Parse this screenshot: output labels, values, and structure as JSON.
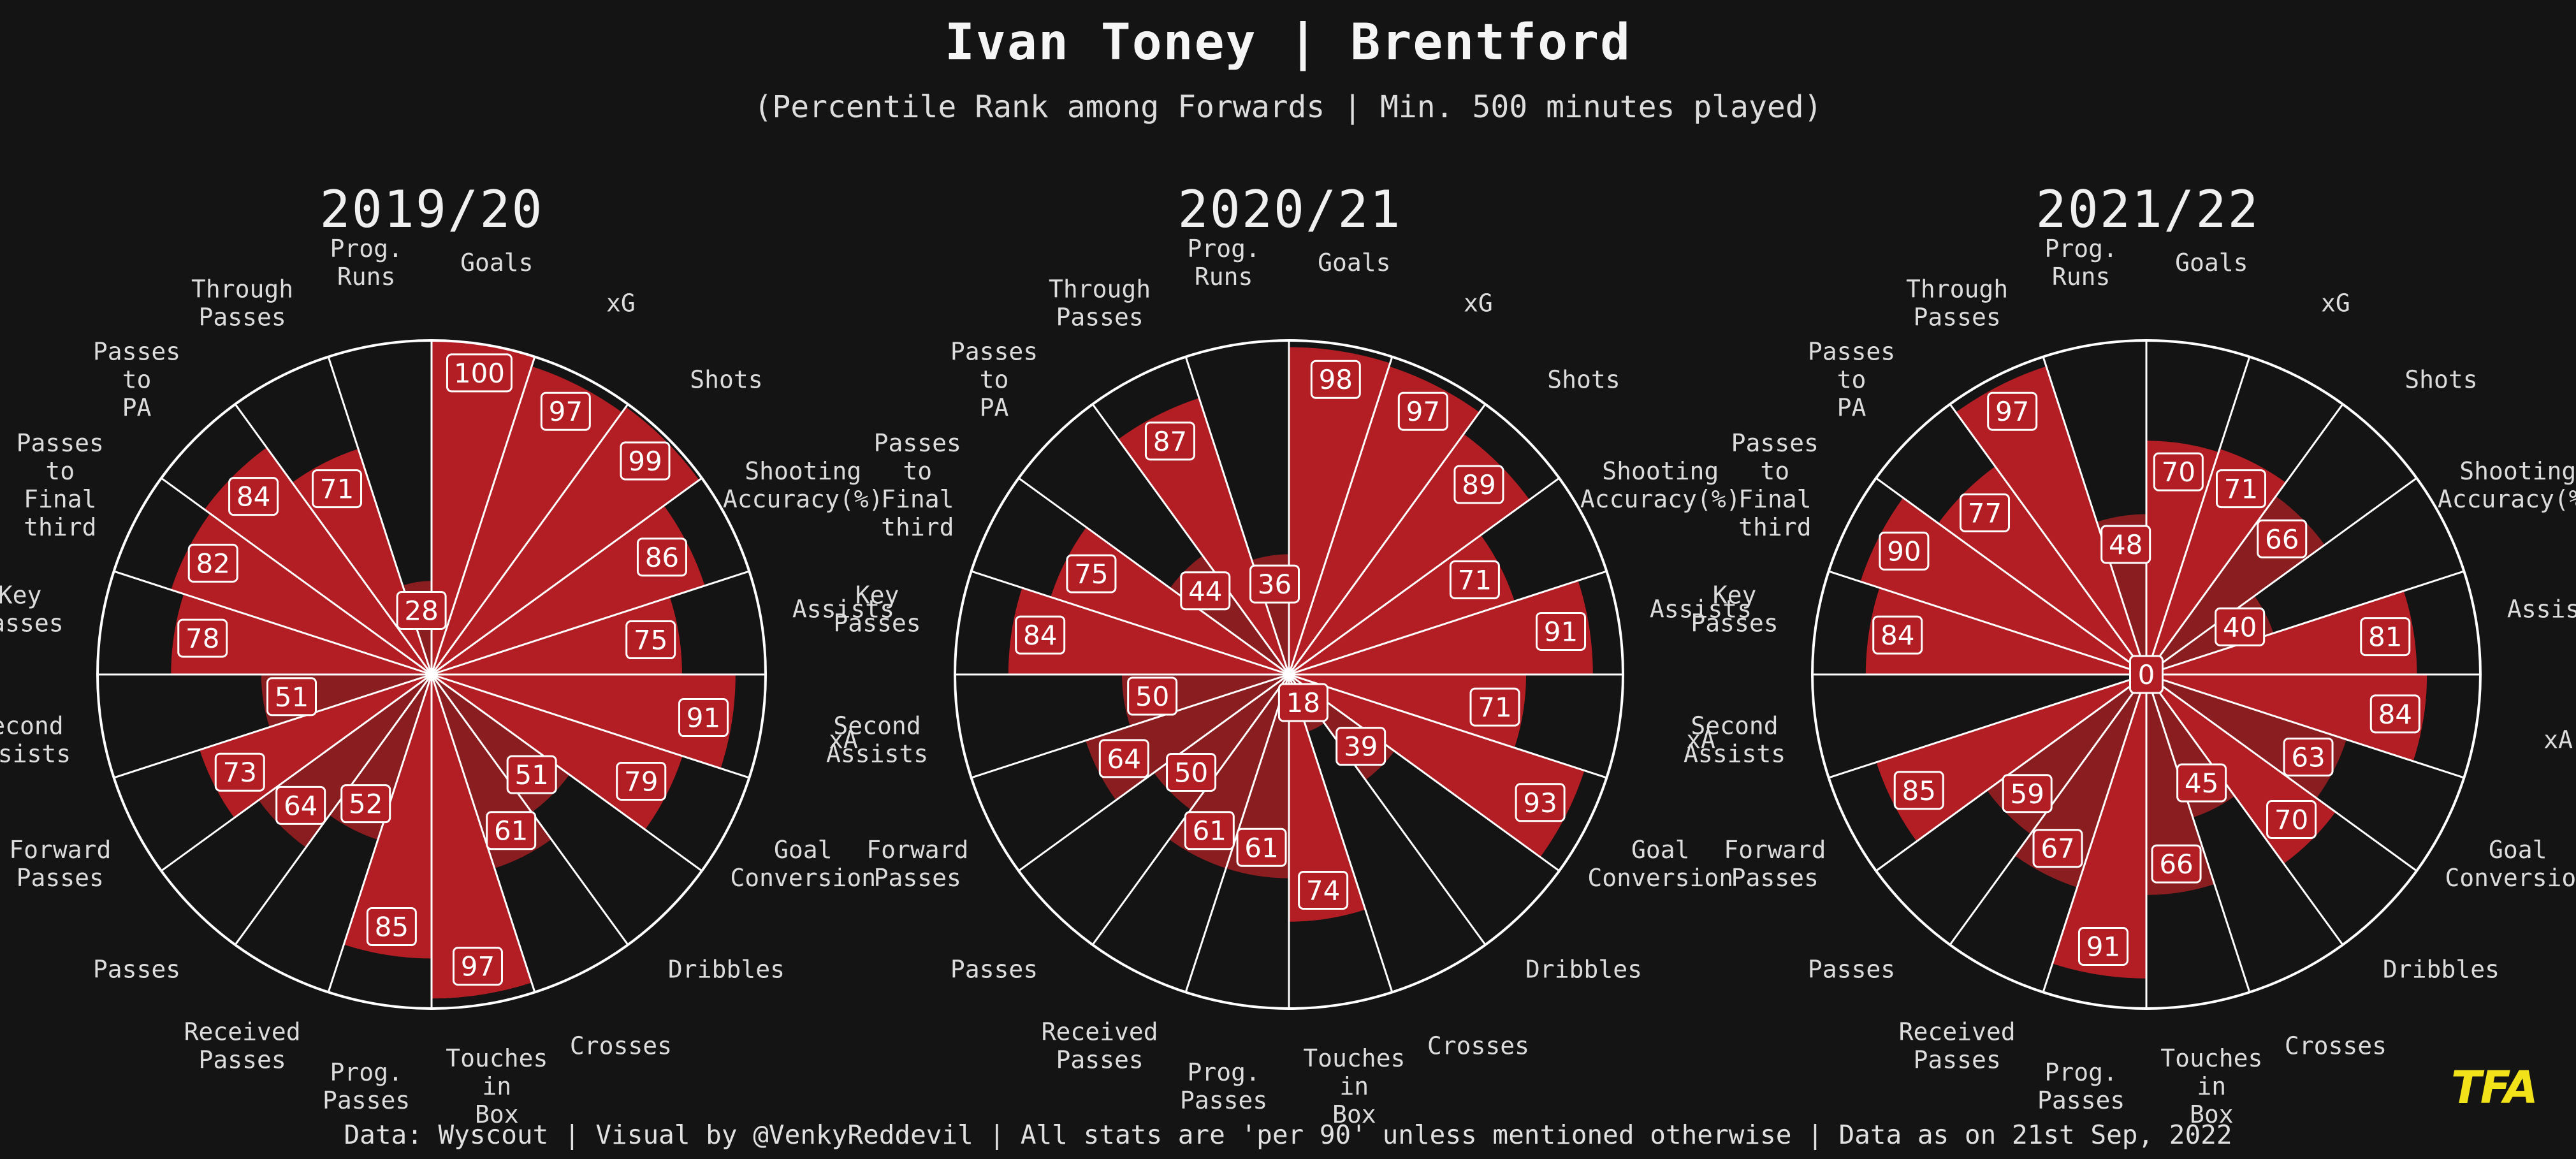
{
  "header": {
    "title": "Ivan Toney | Brentford",
    "subtitle": "(Percentile Rank among Forwards | Min. 500 minutes played)"
  },
  "footer": {
    "text": "Data: Wyscout | Visual by @VenkyReddevil | All stats are 'per 90' unless mentioned otherwise | Data as on 21st Sep, 2022",
    "logo": "TFA"
  },
  "colors": {
    "background": "#141414",
    "slice": "#b21e23",
    "slice_alt": "#8a1d20",
    "edge": "#ffffff",
    "logo": "#f2e21a"
  },
  "chart_data": [
    {
      "type": "pie",
      "subtype": "radial-percentile",
      "title": "2019/20",
      "rlim": [
        0,
        100
      ],
      "categories": [
        "Goals",
        "xG",
        "Shots",
        "Shooting\nAccuracy(%)",
        "Assists",
        "xA",
        "Goal\nConversion",
        "Dribbles",
        "Crosses",
        "Touches\nin\nBox",
        "Prog.\nPasses",
        "Received\nPasses",
        "Passes",
        "Forward\nPasses",
        "Second\nAssists",
        "Key\nPasses",
        "Passes\nto\nFinal\nthird",
        "Passes\nto\nPA",
        "Through\nPasses",
        "Prog.\nRuns"
      ],
      "values": [
        100,
        97,
        99,
        86,
        75,
        91,
        79,
        51,
        61,
        97,
        85,
        52,
        64,
        73,
        51,
        78,
        82,
        84,
        71,
        28
      ]
    },
    {
      "type": "pie",
      "subtype": "radial-percentile",
      "title": "2020/21",
      "rlim": [
        0,
        100
      ],
      "categories": [
        "Goals",
        "xG",
        "Shots",
        "Shooting\nAccuracy(%)",
        "Assists",
        "xA",
        "Goal\nConversion",
        "Dribbles",
        "Crosses",
        "Touches\nin\nBox",
        "Prog.\nPasses",
        "Received\nPasses",
        "Passes",
        "Forward\nPasses",
        "Second\nAssists",
        "Key\nPasses",
        "Passes\nto\nFinal\nthird",
        "Passes\nto\nPA",
        "Through\nPasses",
        "Prog.\nRuns"
      ],
      "values": [
        98,
        97,
        89,
        71,
        91,
        71,
        93,
        39,
        18,
        74,
        61,
        61,
        50,
        64,
        50,
        84,
        75,
        44,
        87,
        36
      ]
    },
    {
      "type": "pie",
      "subtype": "radial-percentile",
      "title": "2021/22",
      "rlim": [
        0,
        100
      ],
      "categories": [
        "Goals",
        "xG",
        "Shots",
        "Shooting\nAccuracy(%)",
        "Assists",
        "xA",
        "Goal\nConversion",
        "Dribbles",
        "Crosses",
        "Touches\nin\nBox",
        "Prog.\nPasses",
        "Received\nPasses",
        "Passes",
        "Forward\nPasses",
        "Second\nAssists",
        "Key\nPasses",
        "Passes\nto\nFinal\nthird",
        "Passes\nto\nPA",
        "Through\nPasses",
        "Prog.\nRuns"
      ],
      "values": [
        70,
        71,
        66,
        40,
        81,
        84,
        63,
        70,
        45,
        66,
        91,
        67,
        59,
        85,
        0,
        84,
        90,
        77,
        97,
        48
      ]
    }
  ]
}
